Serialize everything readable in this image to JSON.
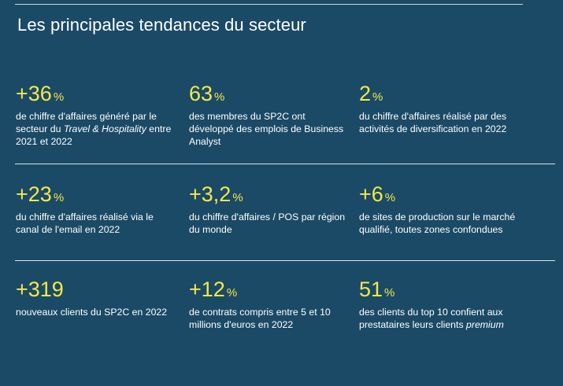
{
  "title": "Les principales tendances du secteur",
  "rows": [
    [
      {
        "value": "+36",
        "unit": "%",
        "desc_a": "de chiffre d'affaires généré par le secteur du ",
        "desc_em": "Travel & Hospitality",
        "desc_b": " entre 2021 et 2022"
      },
      {
        "value": "63",
        "unit": "%",
        "desc_a": "des membres du SP2C ont développé des emplois de Business Analyst",
        "desc_em": "",
        "desc_b": ""
      },
      {
        "value": "2",
        "unit": "%",
        "desc_a": "du chiffre d'affaires réalisé par des activités de diversification en 2022",
        "desc_em": "",
        "desc_b": ""
      }
    ],
    [
      {
        "value": "+23",
        "unit": "%",
        "desc_a": "du chiffre d'affaires réalisé via le canal de l'email en 2022",
        "desc_em": "",
        "desc_b": ""
      },
      {
        "value": "+3,2",
        "unit": "%",
        "desc_a": "du chiffre d'affaires / POS par région du monde",
        "desc_em": "",
        "desc_b": ""
      },
      {
        "value": "+6",
        "unit": "%",
        "desc_a": "de sites de production sur le marché qualifié, toutes zones confondues",
        "desc_em": "",
        "desc_b": ""
      }
    ],
    [
      {
        "value": "+319",
        "unit": "",
        "desc_a": "nouveaux clients du SP2C en 2022",
        "desc_em": "",
        "desc_b": ""
      },
      {
        "value": "+12",
        "unit": "%",
        "desc_a": "de contrats compris entre 5 et 10 millions d'euros en 2022",
        "desc_em": "",
        "desc_b": ""
      },
      {
        "value": "51",
        "unit": "%",
        "desc_a": "des clients du top 10 confient aux prestataires leurs clients ",
        "desc_em": "premium",
        "desc_b": ""
      }
    ]
  ],
  "colors": {
    "background": "#1b4a66",
    "accent": "#f5e84a",
    "text": "#ffffff"
  }
}
